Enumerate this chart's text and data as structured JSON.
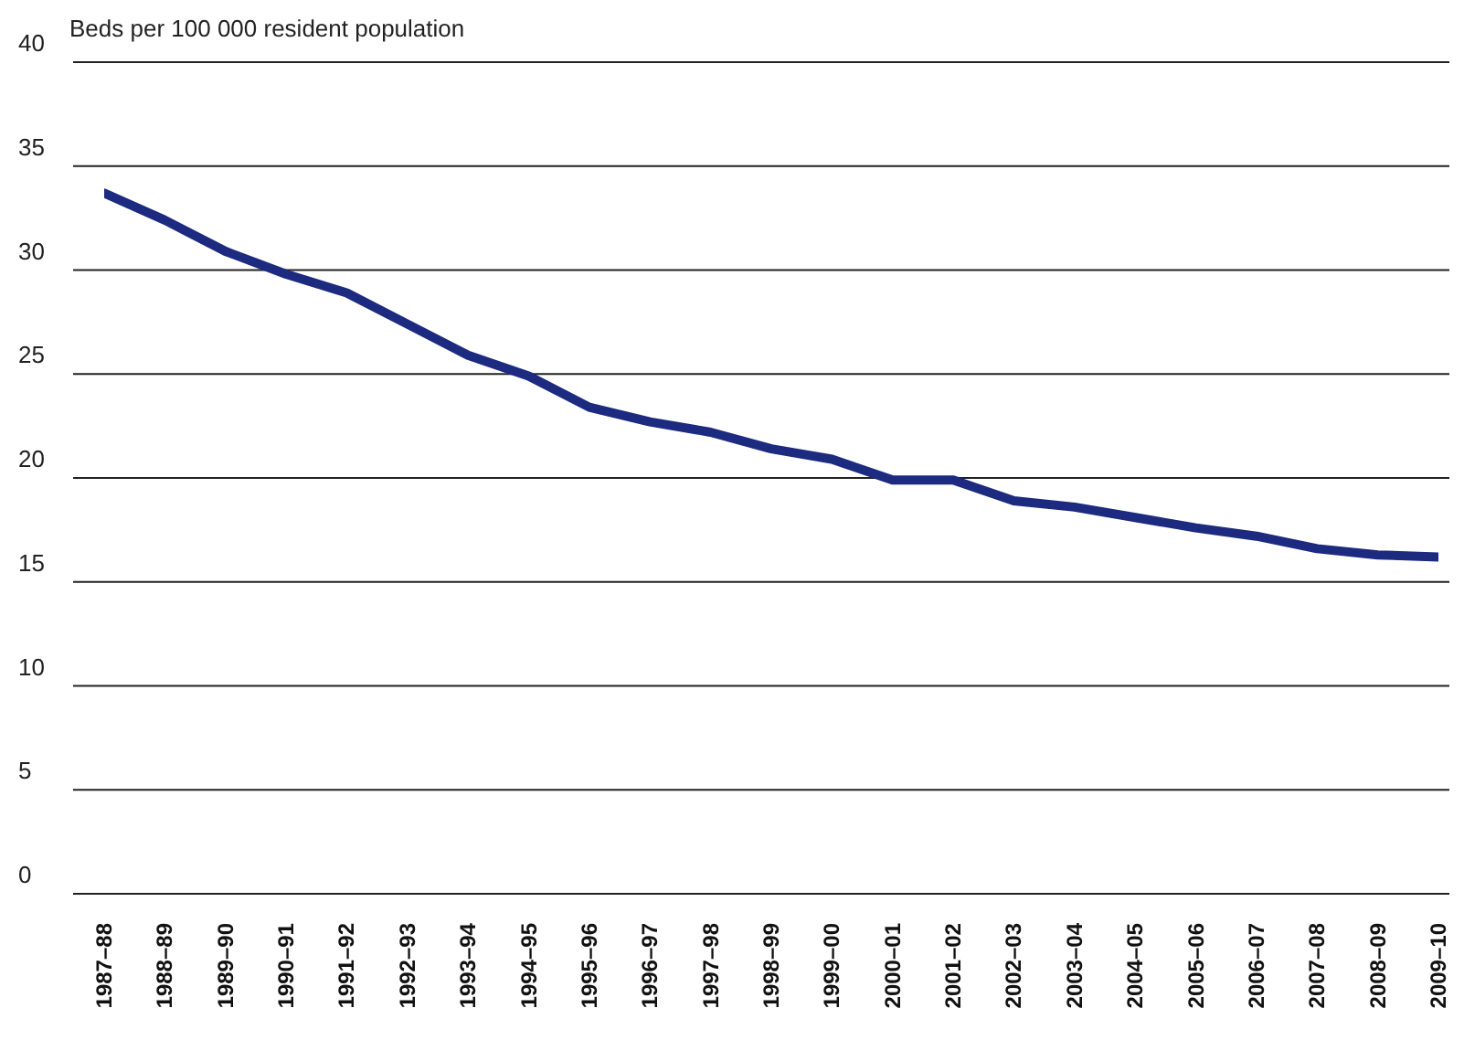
{
  "chart_data": {
    "type": "line",
    "ylabel": "Beds per 100 000 resident population",
    "categories": [
      "1987–88",
      "1988–89",
      "1989–90",
      "1990–91",
      "1991–92",
      "1992–93",
      "1993–94",
      "1994–95",
      "1995–96",
      "1996–97",
      "1997–98",
      "1998–99",
      "1999–00",
      "2000–01",
      "2001–02",
      "2002–03",
      "2003–04",
      "2004–05",
      "2005–06",
      "2006–07",
      "2007–08",
      "2008–09",
      "2009–10"
    ],
    "series": [
      {
        "color": "#1c2a80",
        "values": [
          33.7,
          32.4,
          30.9,
          29.8,
          28.9,
          27.4,
          25.9,
          24.9,
          23.4,
          22.7,
          22.2,
          21.4,
          20.9,
          19.9,
          19.9,
          18.9,
          18.6,
          18.1,
          17.6,
          17.2,
          16.6,
          16.3,
          16.2
        ]
      }
    ],
    "ylim": [
      0,
      40
    ],
    "yticks": [
      0,
      5,
      10,
      15,
      20,
      25,
      30,
      35,
      40
    ],
    "grid": "y",
    "legend": false,
    "marker": "none",
    "line_style": "solid"
  }
}
